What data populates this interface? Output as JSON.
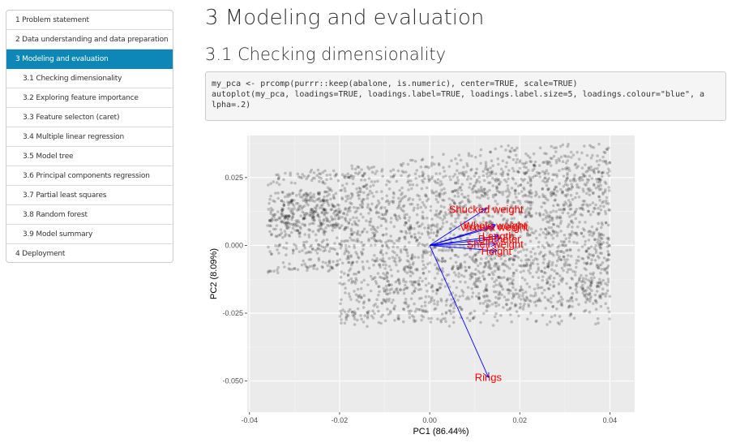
{
  "toc": {
    "items": [
      {
        "label": "1 Problem statement",
        "level": 1,
        "active": false
      },
      {
        "label": "2 Data understanding and data preparation",
        "level": 1,
        "active": false
      },
      {
        "label": "3 Modeling and evaluation",
        "level": 1,
        "active": true
      },
      {
        "label": "3.1 Checking dimensionality",
        "level": 2,
        "active": false
      },
      {
        "label": "3.2 Exploring feature importance",
        "level": 2,
        "active": false
      },
      {
        "label": "3.3 Feature selecton (caret)",
        "level": 2,
        "active": false
      },
      {
        "label": "3.4 Multiple linear regression",
        "level": 2,
        "active": false
      },
      {
        "label": "3.5 Model tree",
        "level": 2,
        "active": false
      },
      {
        "label": "3.6 Principal components regression",
        "level": 2,
        "active": false
      },
      {
        "label": "3.7 Partial least squares",
        "level": 2,
        "active": false
      },
      {
        "label": "3.8 Random forest",
        "level": 2,
        "active": false
      },
      {
        "label": "3.9 Model summary",
        "level": 2,
        "active": false
      },
      {
        "label": "4 Deployment",
        "level": 1,
        "active": false
      }
    ]
  },
  "main": {
    "title": "3 Modeling and evaluation",
    "section_title": "3.1 Checking dimensionality",
    "code": {
      "line1": "my_pca <- prcomp(purrr::keep(abalone, is.numeric), center=TRUE, scale=TRUE)",
      "line2": "autoplot(my_pca, loadings=TRUE, loadings.label=TRUE, loadings.label.size=5, loadings.colour=\"blue\", a",
      "line3": "lpha=.2)"
    }
  },
  "colors": {
    "toc_active": "#0d87b7",
    "panel_bg": "#ebebeb",
    "loading_arrow": "#0000ff",
    "loading_label": "#ff0000"
  },
  "chart_data": {
    "type": "scatter",
    "title": "",
    "xlabel": "PC1 (86.44%)",
    "ylabel": "PC2 (8.09%)",
    "xlim": [
      -0.0405,
      0.0455
    ],
    "ylim": [
      -0.0615,
      0.0405
    ],
    "x_ticks": [
      -0.04,
      -0.02,
      0.0,
      0.02,
      0.04
    ],
    "x_tick_labels": [
      "-0.04",
      "-0.02",
      "0.00",
      "0.02",
      "0.04"
    ],
    "y_ticks": [
      -0.05,
      -0.025,
      0.0,
      0.025
    ],
    "y_tick_labels": [
      "-0.050",
      "-0.025",
      "0.000",
      "0.025"
    ],
    "grid": true,
    "point_alpha": 0.2,
    "loadings": [
      {
        "label": "Shucked weight",
        "x": 0.0125,
        "y": 0.0135
      },
      {
        "label": "Whole weight",
        "x": 0.0145,
        "y": 0.0075
      },
      {
        "label": "Viscera weight",
        "x": 0.0143,
        "y": 0.0068
      },
      {
        "label": "Length",
        "x": 0.0152,
        "y": 0.0035
      },
      {
        "label": "Diameter",
        "x": 0.0155,
        "y": 0.0025
      },
      {
        "label": "Shell weight",
        "x": 0.0145,
        "y": 0.0005
      },
      {
        "label": "Height",
        "x": 0.0148,
        "y": -0.002
      },
      {
        "label": "Rings",
        "x": 0.013,
        "y": -0.0485
      }
    ]
  }
}
